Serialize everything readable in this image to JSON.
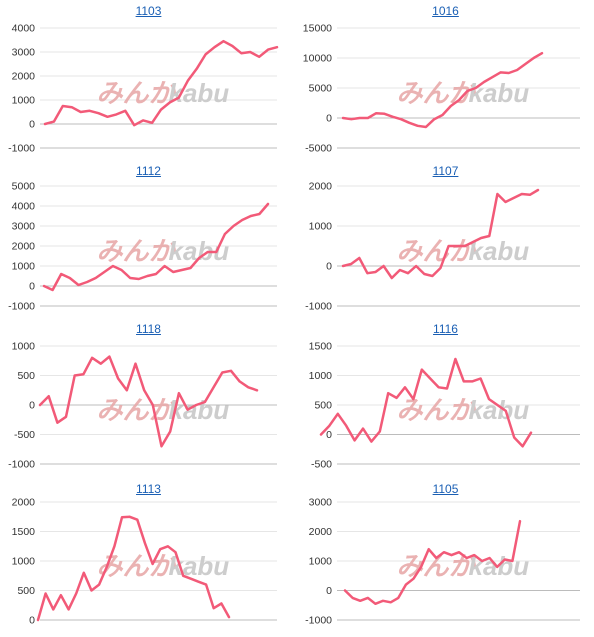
{
  "colors": {
    "line": "#f25a78",
    "grid": "#e6e6e6",
    "axis": "#bcbcbc",
    "title": "#1a5fb4",
    "wm1": "#e8aaaa",
    "wm2": "#c8c8c8"
  },
  "watermark": {
    "part1": "みんか",
    "part2": "kabu"
  },
  "chart_data": [
    {
      "type": "line",
      "title": "1103",
      "ylim": [
        -1000,
        4000
      ],
      "yticks": [
        -1000,
        0,
        1000,
        2000,
        3000,
        4000
      ],
      "values": [
        0,
        100,
        750,
        700,
        500,
        550,
        450,
        300,
        400,
        550,
        -50,
        150,
        50,
        600,
        900,
        1100,
        1800,
        2300,
        2900,
        3200,
        3450,
        3250,
        2950,
        3000,
        2800,
        3100,
        3200
      ]
    },
    {
      "type": "line",
      "title": "1016",
      "ylim": [
        -5000,
        15000
      ],
      "yticks": [
        -5000,
        0,
        5000,
        10000,
        15000
      ],
      "values": [
        0,
        -200,
        0,
        0,
        800,
        700,
        200,
        -200,
        -800,
        -1300,
        -1500,
        -200,
        500,
        2000,
        3000,
        4500,
        5000,
        6000,
        6800,
        7600,
        7500,
        8000,
        9000,
        10000,
        10800
      ]
    },
    {
      "type": "line",
      "title": "1112",
      "ylim": [
        -1000,
        5000
      ],
      "yticks": [
        -1000,
        0,
        1000,
        2000,
        3000,
        4000,
        5000
      ],
      "values": [
        0,
        -200,
        600,
        400,
        50,
        200,
        400,
        700,
        1000,
        800,
        400,
        350,
        500,
        600,
        1000,
        700,
        800,
        900,
        1400,
        1700,
        1700,
        2600,
        3000,
        3300,
        3500,
        3600,
        4100
      ]
    },
    {
      "type": "line",
      "title": "1107",
      "ylim": [
        -1000,
        2000
      ],
      "yticks": [
        -1000,
        0,
        1000,
        2000
      ],
      "values": [
        0,
        50,
        200,
        -180,
        -150,
        0,
        -300,
        -100,
        -180,
        0,
        -200,
        -250,
        -50,
        500,
        500,
        500,
        600,
        700,
        750,
        1800,
        1600,
        1700,
        1800,
        1780,
        1900
      ]
    },
    {
      "type": "line",
      "title": "1118",
      "ylim": [
        -1000,
        1000
      ],
      "yticks": [
        -1000,
        -500,
        0,
        500,
        1000
      ],
      "values": [
        0,
        150,
        -300,
        -200,
        500,
        520,
        800,
        700,
        820,
        450,
        250,
        700,
        250,
        0,
        -700,
        -450,
        200,
        -80,
        0,
        50,
        300,
        550,
        580,
        400,
        300,
        250
      ]
    },
    {
      "type": "line",
      "title": "1116",
      "ylim": [
        -500,
        1500
      ],
      "yticks": [
        -500,
        0,
        500,
        1000,
        1500
      ],
      "values": [
        0,
        150,
        350,
        150,
        -100,
        100,
        -120,
        50,
        700,
        620,
        800,
        600,
        1100,
        950,
        800,
        780,
        1280,
        900,
        900,
        950,
        600,
        500,
        400,
        -50,
        -200,
        30
      ]
    },
    {
      "type": "line",
      "title": "1113",
      "ylim": [
        0,
        2000
      ],
      "yticks": [
        0,
        500,
        1000,
        1500,
        2000
      ],
      "values": [
        0,
        450,
        180,
        420,
        180,
        450,
        800,
        500,
        600,
        900,
        1250,
        1740,
        1750,
        1700,
        1300,
        950,
        1200,
        1250,
        1150,
        750,
        700,
        650,
        600,
        200,
        280,
        50
      ]
    },
    {
      "type": "line",
      "title": "1105",
      "ylim": [
        -1000,
        3000
      ],
      "yticks": [
        -1000,
        0,
        1000,
        2000,
        3000
      ],
      "values": [
        0,
        -250,
        -350,
        -250,
        -450,
        -350,
        -400,
        -250,
        200,
        400,
        800,
        1400,
        1100,
        1300,
        1200,
        1300,
        1100,
        1200,
        1000,
        1100,
        800,
        1050,
        1000,
        2350
      ]
    }
  ]
}
